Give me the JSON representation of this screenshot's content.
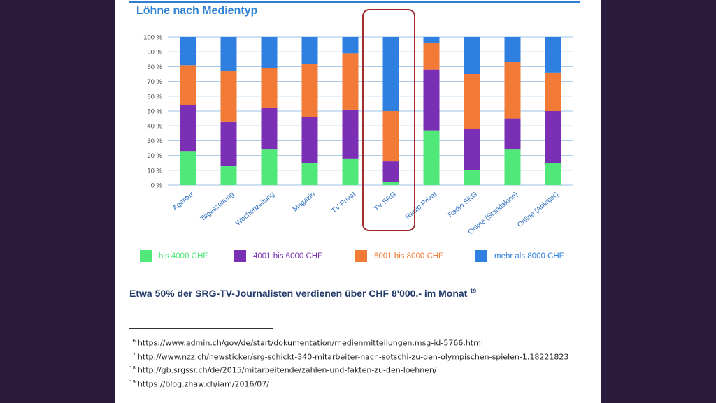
{
  "chart_data": {
    "type": "bar",
    "stacked": true,
    "title": "Löhne nach Medientyp",
    "categories": [
      "Agentur",
      "Tageszeitung",
      "Wochenzeitung",
      "Magazin",
      "TV Privat",
      "TV SRG",
      "Radio Privat",
      "Radio SRG",
      "Online (Standalone)",
      "Online (Ableger)"
    ],
    "series": [
      {
        "name": "bis 4000 CHF",
        "color": "#50e878",
        "values": [
          23,
          13,
          24,
          15,
          18,
          2,
          37,
          10,
          24,
          15
        ]
      },
      {
        "name": "4001 bis 6000 CHF",
        "color": "#7a2fb5",
        "values": [
          31,
          30,
          28,
          31,
          33,
          14,
          41,
          28,
          21,
          35
        ]
      },
      {
        "name": "6001 bis 8000 CHF",
        "color": "#f07a36",
        "values": [
          27,
          34,
          27,
          36,
          38,
          34,
          18,
          37,
          38,
          26
        ]
      },
      {
        "name": "mehr als 8000 CHF",
        "color": "#2f7fe0",
        "values": [
          19,
          23,
          21,
          18,
          11,
          50,
          4,
          25,
          17,
          24
        ]
      }
    ],
    "ylim": [
      0,
      100
    ],
    "yticks": [
      "0 %",
      "10 %",
      "20 %",
      "30 %",
      "40 %",
      "50 %",
      "60 %",
      "70 %",
      "80 %",
      "90 %",
      "100 %"
    ],
    "highlighted_category": "TV SRG",
    "grid": true,
    "legend": "bottom"
  },
  "headline": "Etwa 50% der SRG-TV-Journalisten verdienen über CHF 8'000.- im Monat",
  "headline_ref": "19",
  "footnotes": [
    {
      "num": "16",
      "text": "https://www.admin.ch/gov/de/start/dokumentation/medienmitteilungen.msg-id-5766.html"
    },
    {
      "num": "17",
      "text": "http://www.nzz.ch/newsticker/srg-schickt-340-mitarbeiter-nach-sotschi-zu-den-olympischen-spielen-1.18221823"
    },
    {
      "num": "18",
      "text": "http://gb.srgssr.ch/de/2015/mitarbeitende/zahlen-und-fakten-zu-den-loehnen/"
    },
    {
      "num": "19",
      "text": "https://blog.zhaw.ch/iam/2016/07/"
    }
  ]
}
